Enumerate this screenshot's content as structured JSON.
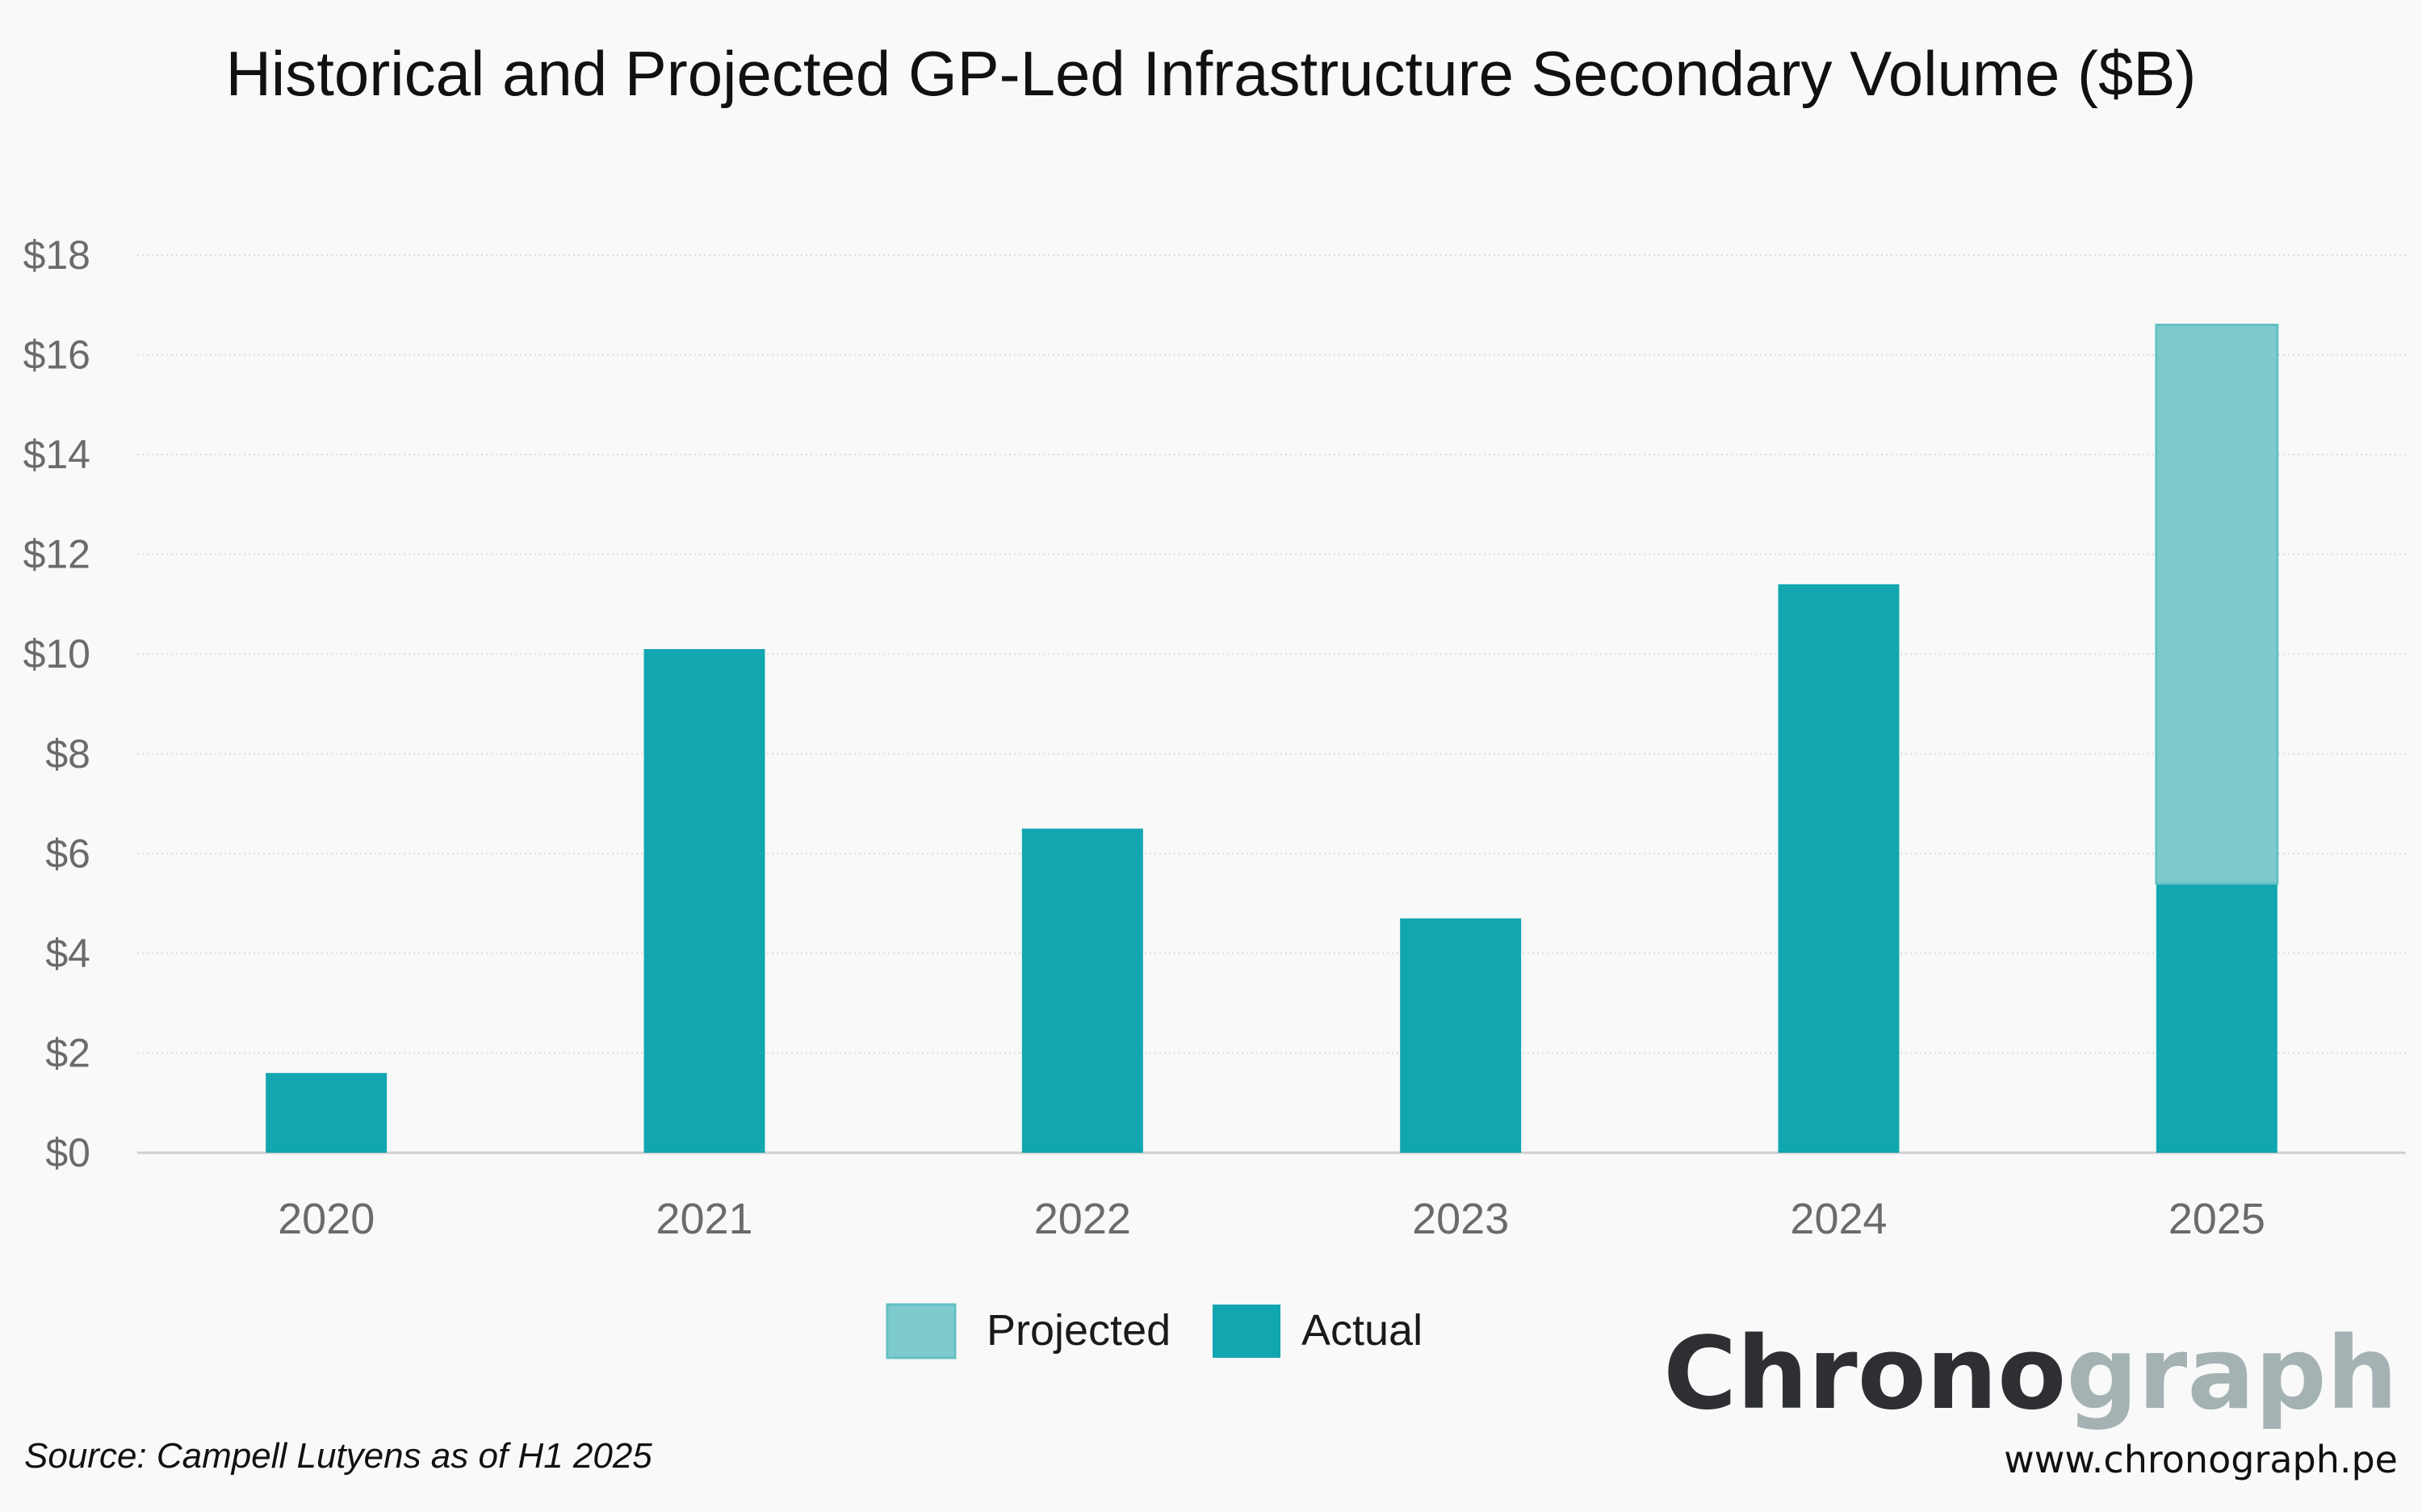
{
  "title": "Historical and Projected GP-Led Infrastructure Secondary Volume ($B)",
  "source": "Source: Campell Lutyens as of H1 2025",
  "brand": {
    "part1": "Chrono",
    "part2": "graph",
    "url": "www.chronograph.pe",
    "color1": "#2d2f33",
    "color2": "#a5b2b4"
  },
  "colors": {
    "actual": "#12a6b0",
    "projected": "#7ecbce",
    "projected_border": "#63c0c4",
    "grid": "#dcdcdc",
    "axis": "#d0d0d0"
  },
  "chart_data": {
    "type": "bar",
    "stacked": true,
    "title": "Historical and Projected GP-Led Infrastructure Secondary Volume ($B)",
    "xlabel": "",
    "ylabel": "",
    "categories": [
      "2020",
      "2021",
      "2022",
      "2023",
      "2024",
      "2025"
    ],
    "series": [
      {
        "name": "Actual",
        "values": [
          1.6,
          10.1,
          6.5,
          4.7,
          11.4,
          5.4
        ]
      },
      {
        "name": "Projected",
        "values": [
          0,
          0,
          0,
          0,
          0,
          11.2
        ]
      }
    ],
    "ylim": [
      0,
      18
    ],
    "yticks": [
      0,
      2,
      4,
      6,
      8,
      10,
      12,
      14,
      16,
      18
    ],
    "ytick_labels": [
      "$0",
      "$2",
      "$4",
      "$6",
      "$8",
      "$10",
      "$12",
      "$14",
      "$16",
      "$18"
    ],
    "grid": true,
    "legend": [
      "Projected",
      "Actual"
    ],
    "legend_position": "bottom-center"
  }
}
